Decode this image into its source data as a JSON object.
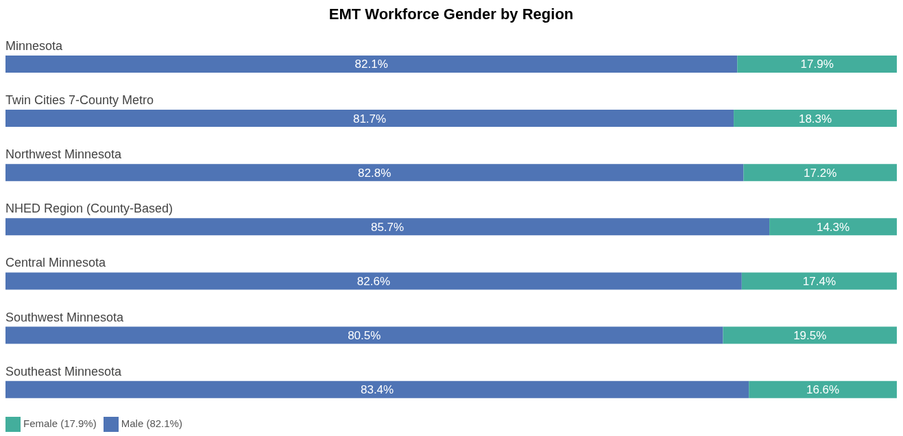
{
  "chart_data": {
    "type": "bar",
    "title": "EMT Workforce Gender by Region",
    "orientation": "horizontal",
    "stacked": true,
    "legend": "bottom left",
    "categories": [
      "Minnesota",
      "Twin Cities 7-County Metro",
      "Northwest Minnesota",
      "NHED Region (County-Based)",
      "Central Minnesota",
      "Southwest Minnesota",
      "Southeast Minnesota"
    ],
    "series": [
      {
        "name": "Male (82.1%)",
        "color": "#4f74b5",
        "values": [
          82.1,
          81.7,
          82.8,
          85.7,
          82.6,
          80.5,
          83.4
        ],
        "value_labels": [
          "82.1%",
          "81.7%",
          "82.8%",
          "85.7%",
          "82.6%",
          "80.5%",
          "83.4%"
        ]
      },
      {
        "name": "Female (17.9%)",
        "color": "#43ae9c",
        "values": [
          17.9,
          18.3,
          17.2,
          14.3,
          17.4,
          19.5,
          16.6
        ],
        "value_labels": [
          "17.9%",
          "18.3%",
          "17.2%",
          "14.3%",
          "17.4%",
          "19.5%",
          "16.6%"
        ]
      }
    ]
  }
}
